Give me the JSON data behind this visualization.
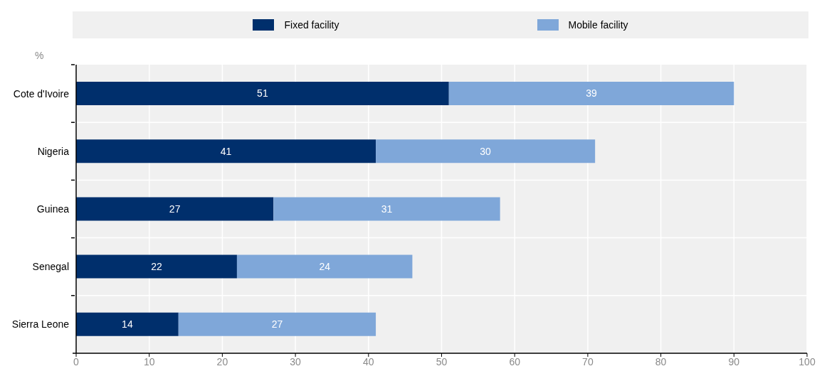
{
  "chart_data": {
    "type": "bar",
    "orientation": "horizontal",
    "stacked": true,
    "xlabel": "%",
    "categories": [
      "Cote d'Ivoire",
      "Nigeria",
      "Guinea",
      "Senegal",
      "Sierra Leone"
    ],
    "series": [
      {
        "name": "Fixed facility",
        "color": "#002f6c",
        "values": [
          51,
          41,
          27,
          22,
          14
        ]
      },
      {
        "name": "Mobile facility",
        "color": "#7fa7d9",
        "values": [
          39,
          30,
          31,
          24,
          27
        ]
      }
    ],
    "xlim": [
      0,
      100
    ],
    "xticks": [
      0,
      10,
      20,
      30,
      40,
      50,
      60,
      70,
      80,
      90,
      100
    ],
    "grid": true,
    "legend": "top",
    "data_labels": true
  }
}
